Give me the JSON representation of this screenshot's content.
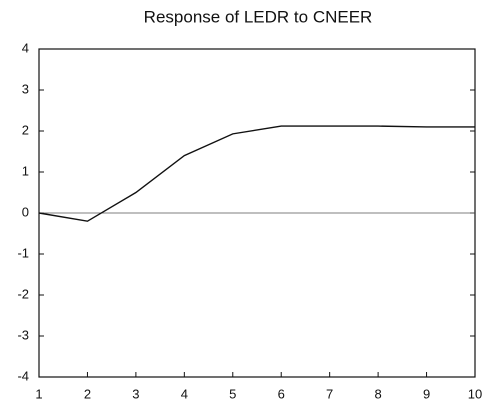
{
  "chart_data": {
    "type": "line",
    "title": "Response of LEDR to CNEER",
    "x": [
      1,
      2,
      3,
      4,
      5,
      6,
      7,
      8,
      9,
      10
    ],
    "series": [
      {
        "color": "#111111",
        "values": [
          0,
          -0.2,
          0.5,
          1.4,
          1.93,
          2.12,
          2.12,
          2.12,
          2.1,
          2.1
        ]
      }
    ],
    "xlim": [
      1,
      10
    ],
    "xticks": [
      1,
      2,
      3,
      4,
      5,
      6,
      7,
      8,
      9,
      10
    ],
    "ylim": [
      -4,
      4
    ],
    "yticks": [
      -4,
      -3,
      -2,
      -1,
      0,
      1,
      2,
      3,
      4
    ],
    "zero_line": true
  }
}
